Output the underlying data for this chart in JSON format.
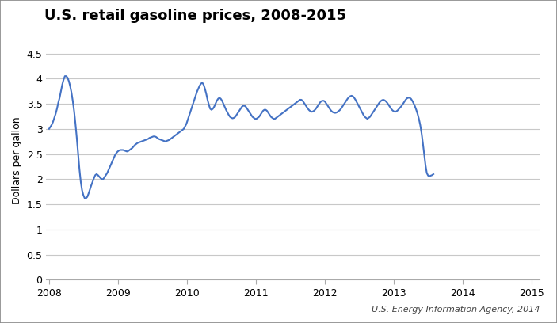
{
  "title": "U.S. retail gasoline prices, 2008-2015",
  "ylabel": "Dollars per gallon",
  "source_text": "U.S. Energy Information Agency, 2014",
  "line_color": "#4472C4",
  "line_width": 1.5,
  "ylim": [
    0,
    4.75
  ],
  "yticks": [
    0,
    0.5,
    1,
    1.5,
    2,
    2.5,
    3,
    3.5,
    4,
    4.5
  ],
  "ytick_labels": [
    "0",
    "0.5",
    "1",
    "1.5",
    "2",
    "2.5",
    "3",
    "3.5",
    "4",
    "4.5"
  ],
  "xtick_years": [
    2008,
    2009,
    2010,
    2011,
    2012,
    2013,
    2014,
    2015
  ],
  "xlim": [
    2007.96,
    2015.12
  ],
  "background_color": "#ffffff",
  "grid_color": "#c8c8c8",
  "title_fontsize": 13,
  "axis_fontsize": 9,
  "source_fontsize": 8,
  "prices": [
    3.0,
    3.04,
    3.08,
    3.14,
    3.22,
    3.3,
    3.4,
    3.52,
    3.62,
    3.75,
    3.88,
    3.98,
    4.05,
    4.05,
    4.02,
    3.95,
    3.85,
    3.72,
    3.55,
    3.35,
    3.1,
    2.82,
    2.5,
    2.2,
    1.95,
    1.78,
    1.68,
    1.62,
    1.62,
    1.65,
    1.72,
    1.8,
    1.88,
    1.95,
    2.02,
    2.08,
    2.1,
    2.08,
    2.05,
    2.02,
    2.0,
    2.0,
    2.04,
    2.08,
    2.12,
    2.18,
    2.24,
    2.3,
    2.36,
    2.42,
    2.48,
    2.52,
    2.55,
    2.57,
    2.58,
    2.58,
    2.58,
    2.57,
    2.56,
    2.55,
    2.56,
    2.58,
    2.6,
    2.62,
    2.65,
    2.68,
    2.7,
    2.72,
    2.73,
    2.74,
    2.75,
    2.76,
    2.77,
    2.78,
    2.79,
    2.8,
    2.82,
    2.83,
    2.84,
    2.85,
    2.85,
    2.84,
    2.82,
    2.8,
    2.79,
    2.78,
    2.77,
    2.76,
    2.75,
    2.76,
    2.77,
    2.78,
    2.8,
    2.82,
    2.84,
    2.86,
    2.88,
    2.9,
    2.92,
    2.94,
    2.96,
    2.98,
    3.0,
    3.05,
    3.1,
    3.18,
    3.26,
    3.34,
    3.42,
    3.5,
    3.58,
    3.66,
    3.74,
    3.8,
    3.86,
    3.9,
    3.92,
    3.88,
    3.8,
    3.7,
    3.58,
    3.48,
    3.4,
    3.38,
    3.4,
    3.44,
    3.5,
    3.56,
    3.6,
    3.62,
    3.6,
    3.56,
    3.5,
    3.44,
    3.38,
    3.33,
    3.28,
    3.24,
    3.22,
    3.21,
    3.22,
    3.24,
    3.28,
    3.32,
    3.36,
    3.4,
    3.44,
    3.46,
    3.46,
    3.44,
    3.4,
    3.36,
    3.32,
    3.28,
    3.24,
    3.22,
    3.2,
    3.2,
    3.22,
    3.24,
    3.28,
    3.32,
    3.36,
    3.38,
    3.38,
    3.36,
    3.32,
    3.28,
    3.24,
    3.22,
    3.2,
    3.2,
    3.22,
    3.24,
    3.26,
    3.28,
    3.3,
    3.32,
    3.34,
    3.36,
    3.38,
    3.4,
    3.42,
    3.44,
    3.46,
    3.48,
    3.5,
    3.52,
    3.54,
    3.56,
    3.58,
    3.58,
    3.56,
    3.52,
    3.48,
    3.44,
    3.4,
    3.37,
    3.35,
    3.34,
    3.35,
    3.37,
    3.4,
    3.44,
    3.48,
    3.52,
    3.55,
    3.56,
    3.56,
    3.54,
    3.5,
    3.46,
    3.42,
    3.38,
    3.35,
    3.33,
    3.32,
    3.32,
    3.33,
    3.35,
    3.37,
    3.4,
    3.44,
    3.48,
    3.52,
    3.56,
    3.6,
    3.63,
    3.65,
    3.66,
    3.65,
    3.62,
    3.58,
    3.53,
    3.48,
    3.43,
    3.38,
    3.33,
    3.28,
    3.24,
    3.22,
    3.2,
    3.22,
    3.24,
    3.28,
    3.32,
    3.36,
    3.4,
    3.44,
    3.48,
    3.52,
    3.55,
    3.57,
    3.58,
    3.57,
    3.55,
    3.52,
    3.48,
    3.44,
    3.4,
    3.37,
    3.35,
    3.34,
    3.35,
    3.37,
    3.4,
    3.43,
    3.46,
    3.5,
    3.54,
    3.58,
    3.61,
    3.62,
    3.62,
    3.6,
    3.56,
    3.51,
    3.45,
    3.38,
    3.3,
    3.2,
    3.08,
    2.92,
    2.72,
    2.5,
    2.28,
    2.12,
    2.07,
    2.06,
    2.07,
    2.08,
    2.1
  ]
}
